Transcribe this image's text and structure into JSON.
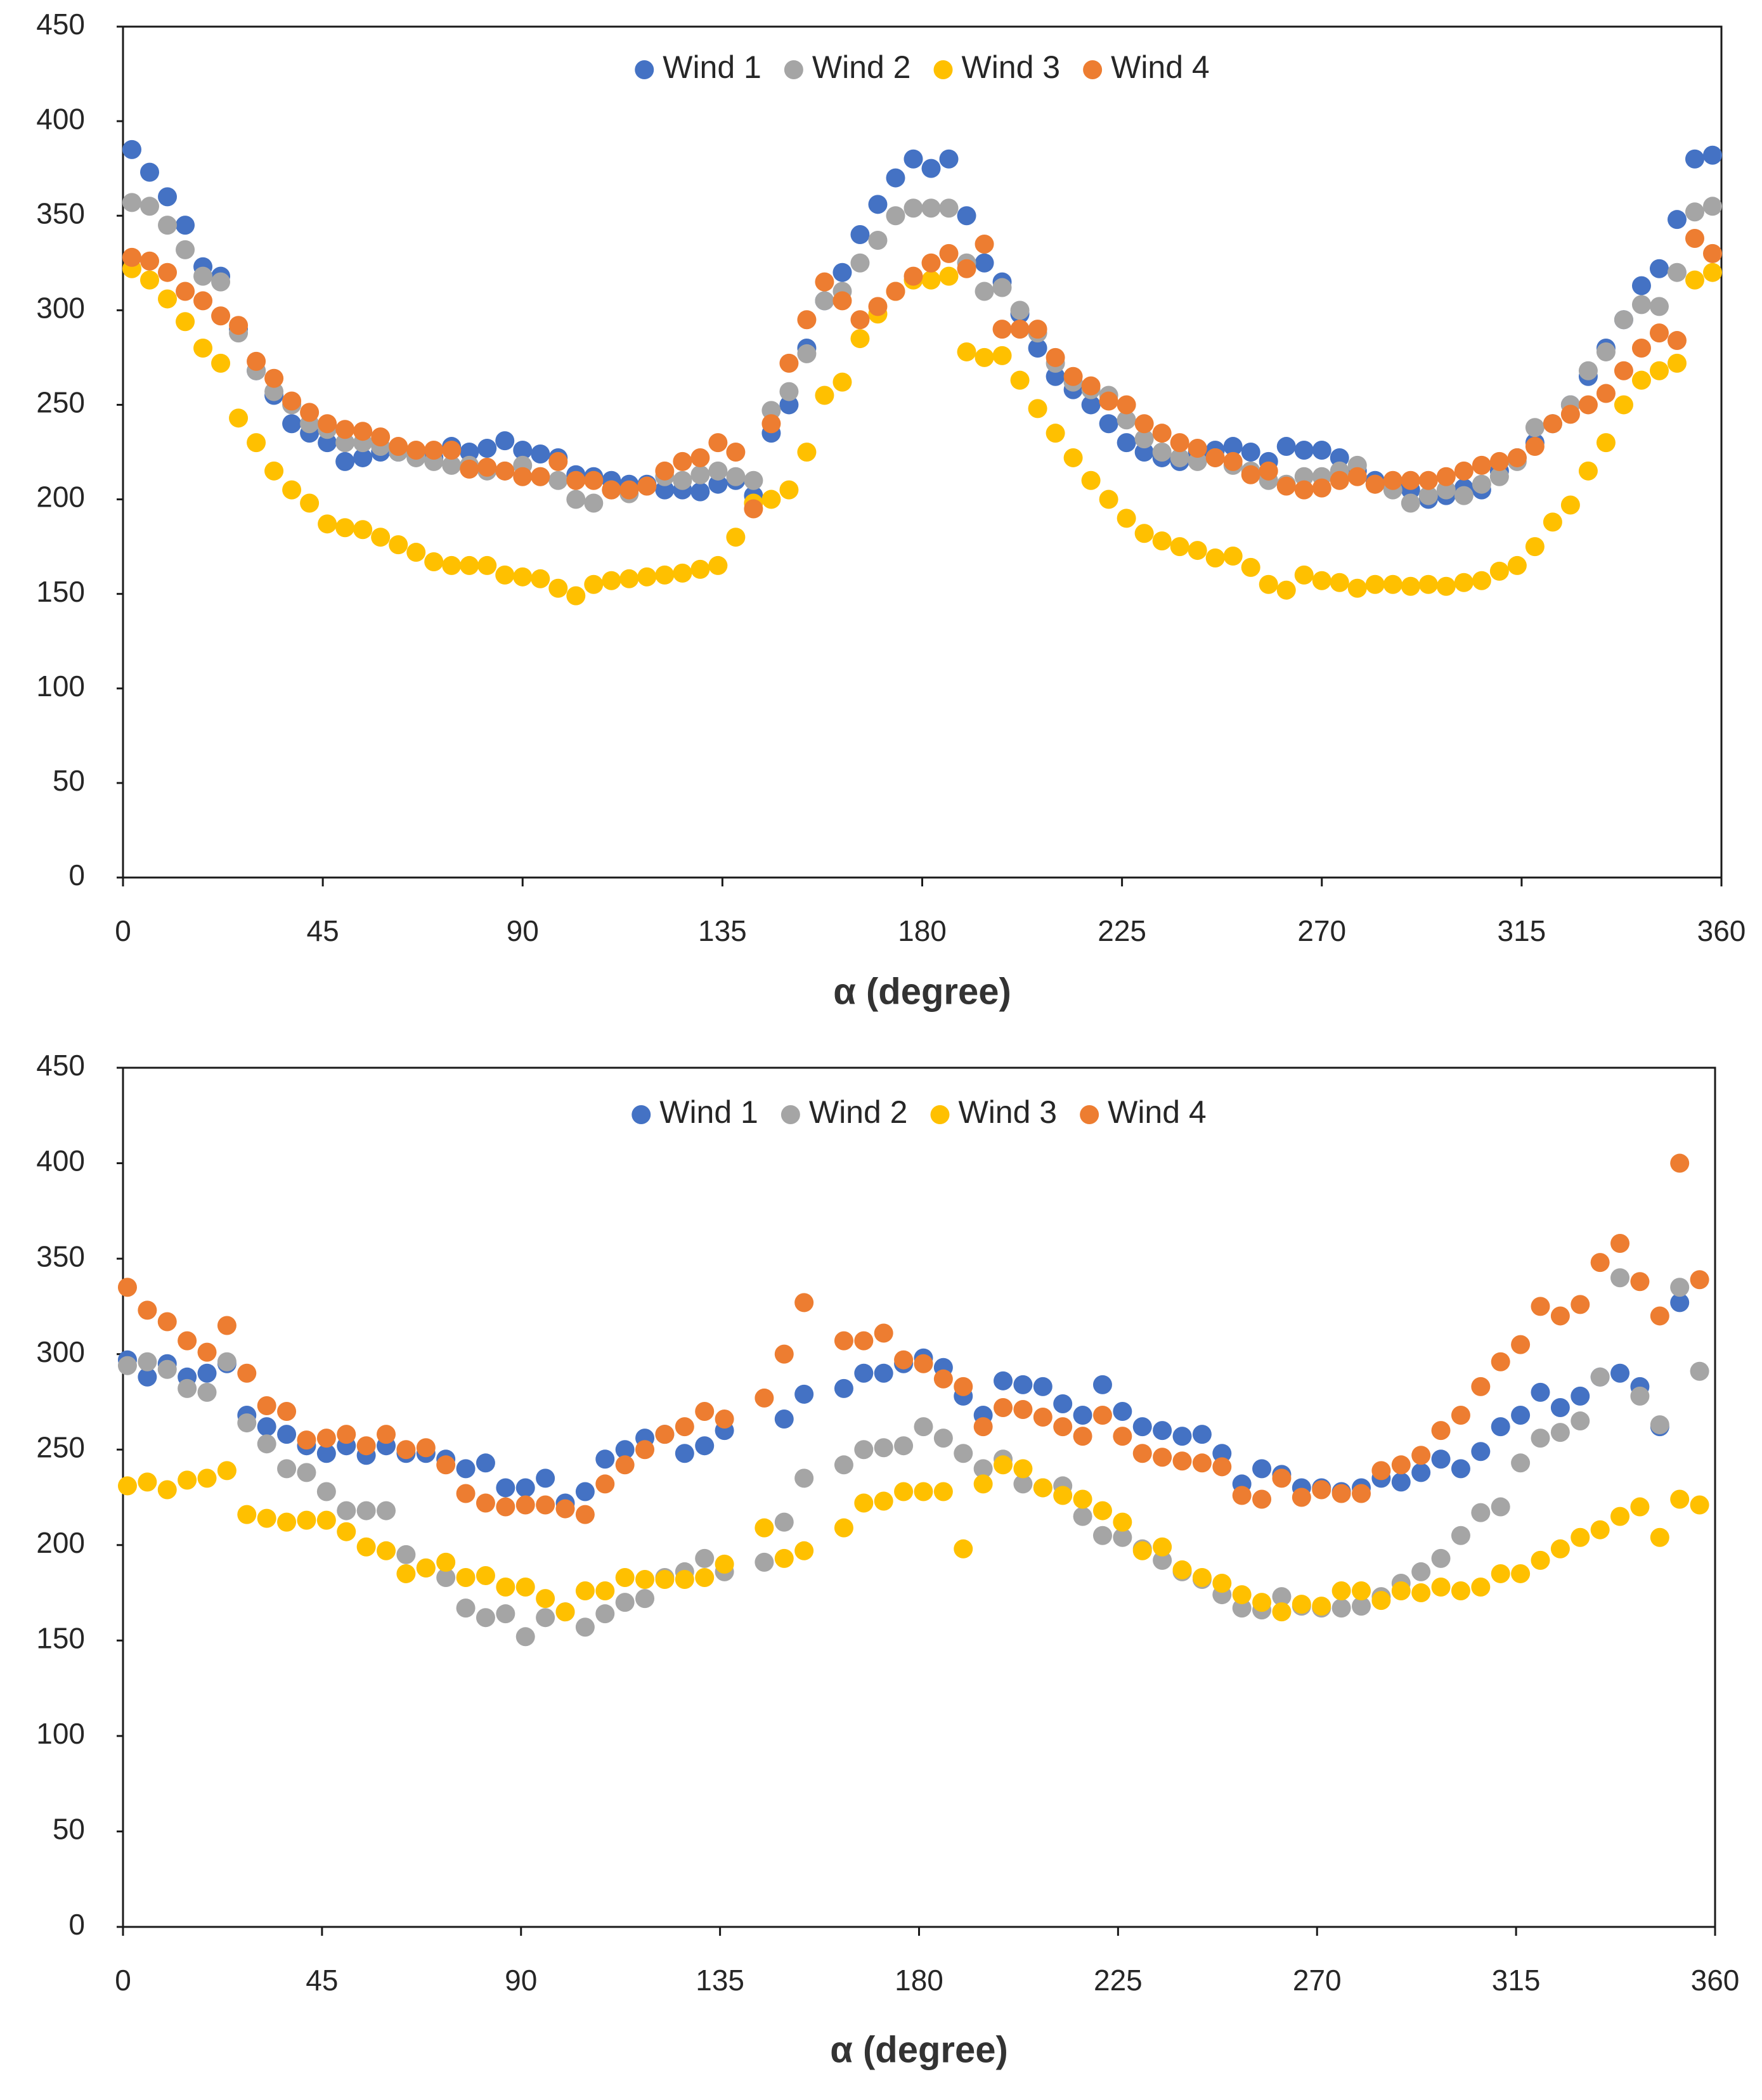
{
  "chart_data": [
    {
      "type": "scatter",
      "xlabel": "α (degree)",
      "xlim": [
        0,
        360
      ],
      "xticks": [
        0,
        45,
        90,
        135,
        180,
        225,
        270,
        315,
        360
      ],
      "ylim": [
        0,
        450
      ],
      "yticks": [
        0,
        50,
        100,
        150,
        200,
        250,
        300,
        350,
        400,
        450
      ],
      "legend": "top",
      "x": [
        2,
        6,
        10,
        14,
        18,
        22,
        26,
        30,
        34,
        38,
        42,
        46,
        50,
        54,
        58,
        62,
        66,
        70,
        74,
        78,
        82,
        86,
        90,
        94,
        98,
        102,
        106,
        110,
        114,
        118,
        122,
        126,
        130,
        134,
        138,
        142,
        146,
        150,
        154,
        158,
        162,
        166,
        170,
        174,
        178,
        182,
        186,
        190,
        194,
        198,
        202,
        206,
        210,
        214,
        218,
        222,
        226,
        230,
        234,
        238,
        242,
        246,
        250,
        254,
        258,
        262,
        266,
        270,
        274,
        278,
        282,
        286,
        290,
        294,
        298,
        302,
        306,
        310,
        314,
        318,
        322,
        326,
        330,
        334,
        338,
        342,
        346,
        350,
        354,
        358
      ],
      "series": [
        {
          "name": "Wind 1",
          "color": "#4472c4",
          "values": [
            385,
            373,
            360,
            345,
            323,
            318,
            290,
            268,
            255,
            240,
            235,
            230,
            220,
            222,
            225,
            225,
            225,
            222,
            228,
            225,
            227,
            231,
            226,
            224,
            222,
            213,
            212,
            210,
            208,
            208,
            205,
            205,
            204,
            208,
            210,
            202,
            235,
            250,
            280,
            305,
            320,
            340,
            356,
            370,
            380,
            375,
            380,
            350,
            325,
            315,
            298,
            280,
            265,
            258,
            250,
            240,
            230,
            225,
            222,
            220,
            225,
            226,
            228,
            225,
            220,
            228,
            226,
            226,
            222,
            215,
            210,
            208,
            205,
            200,
            202,
            206,
            205,
            215,
            222,
            230,
            240,
            250,
            265,
            280,
            295,
            313,
            322,
            348,
            380,
            382
          ]
        },
        {
          "name": "Wind 2",
          "color": "#a5a5a5",
          "values": [
            357,
            355,
            345,
            332,
            318,
            315,
            288,
            268,
            257,
            250,
            240,
            237,
            230,
            230,
            228,
            225,
            222,
            220,
            218,
            218,
            215,
            215,
            218,
            212,
            210,
            200,
            198,
            205,
            203,
            207,
            212,
            210,
            213,
            215,
            212,
            210,
            247,
            257,
            277,
            305,
            310,
            325,
            337,
            350,
            354,
            354,
            354,
            325,
            310,
            312,
            300,
            288,
            272,
            262,
            258,
            255,
            242,
            232,
            225,
            222,
            220,
            222,
            218,
            215,
            210,
            208,
            212,
            212,
            215,
            218,
            208,
            205,
            198,
            202,
            205,
            202,
            208,
            212,
            220,
            238,
            240,
            250,
            268,
            278,
            295,
            303,
            302,
            320,
            352,
            355
          ]
        },
        {
          "name": "Wind 3",
          "color": "#ffc000",
          "values": [
            322,
            316,
            306,
            294,
            280,
            272,
            243,
            230,
            215,
            205,
            198,
            187,
            185,
            184,
            180,
            176,
            172,
            167,
            165,
            165,
            165,
            160,
            159,
            158,
            153,
            149,
            155,
            157,
            158,
            159,
            160,
            161,
            163,
            165,
            180,
            198,
            200,
            205,
            225,
            255,
            262,
            285,
            298,
            310,
            316,
            316,
            318,
            278,
            275,
            276,
            263,
            248,
            235,
            222,
            210,
            200,
            190,
            182,
            178,
            175,
            173,
            169,
            170,
            164,
            155,
            152,
            160,
            157,
            156,
            153,
            155,
            155,
            154,
            155,
            154,
            156,
            157,
            162,
            165,
            175,
            188,
            197,
            215,
            230,
            250,
            263,
            268,
            272,
            316,
            320
          ]
        },
        {
          "name": "Wind 4",
          "color": "#ed7d31",
          "values": [
            328,
            326,
            320,
            310,
            305,
            297,
            292,
            273,
            264,
            252,
            246,
            240,
            237,
            236,
            233,
            228,
            226,
            226,
            226,
            216,
            217,
            215,
            212,
            212,
            220,
            210,
            210,
            205,
            205,
            207,
            215,
            220,
            222,
            230,
            225,
            195,
            240,
            272,
            295,
            315,
            305,
            295,
            302,
            310,
            318,
            325,
            330,
            322,
            335,
            290,
            290,
            290,
            275,
            265,
            260,
            252,
            250,
            240,
            235,
            230,
            227,
            222,
            220,
            213,
            215,
            207,
            205,
            206,
            210,
            212,
            208,
            210,
            210,
            210,
            212,
            215,
            218,
            220,
            222,
            228,
            240,
            245,
            250,
            256,
            268,
            280,
            288,
            284,
            338,
            330
          ]
        }
      ]
    },
    {
      "type": "scatter",
      "xlabel": "α (degree)",
      "xlim": [
        0,
        360
      ],
      "xticks": [
        0,
        45,
        90,
        135,
        180,
        225,
        270,
        315,
        360
      ],
      "ylim": [
        0,
        450
      ],
      "yticks": [
        0,
        50,
        100,
        150,
        200,
        250,
        300,
        350,
        400,
        450
      ],
      "legend": "top",
      "x": [
        1,
        5.5,
        10,
        14.5,
        19,
        23.5,
        28,
        32.5,
        37,
        41.5,
        46,
        50.5,
        55,
        59.5,
        64,
        68.5,
        73,
        77.5,
        82,
        86.5,
        91,
        95.5,
        100,
        104.5,
        109,
        113.5,
        118,
        122.5,
        127,
        131.5,
        136,
        140.5,
        145,
        149.5,
        154,
        158.5,
        163,
        167.5,
        172,
        176.5,
        181,
        185.5,
        190,
        194.5,
        199,
        203.5,
        208,
        212.5,
        217,
        221.5,
        226,
        230.5,
        235,
        239.5,
        244,
        248.5,
        253,
        257.5,
        262,
        266.5,
        271,
        275.5,
        280,
        284.5,
        289,
        293.5,
        298,
        302.5,
        307,
        311.5,
        316,
        320.5,
        325,
        329.5,
        334,
        338.5,
        343,
        347.5,
        352,
        356.5
      ],
      "series": [
        {
          "name": "Wind 1",
          "color": "#4472c4",
          "values": [
            297,
            288,
            295,
            288,
            290,
            295,
            268,
            262,
            258,
            252,
            248,
            252,
            247,
            252,
            248,
            248,
            245,
            240,
            243,
            230,
            230,
            235,
            222,
            228,
            245,
            250,
            256,
            258,
            248,
            252,
            260,
            null,
            null,
            266,
            279,
            null,
            282,
            290,
            290,
            295,
            298,
            293,
            278,
            268,
            286,
            284,
            283,
            274,
            268,
            284,
            270,
            262,
            260,
            257,
            258,
            248,
            232,
            240,
            237,
            230,
            230,
            228,
            230,
            235,
            233,
            238,
            245,
            240,
            249,
            262,
            268,
            280,
            272,
            278,
            288,
            290,
            283,
            262,
            327,
            null
          ]
        },
        {
          "name": "Wind 2",
          "color": "#a5a5a5",
          "values": [
            294,
            296,
            292,
            282,
            280,
            296,
            264,
            253,
            240,
            238,
            228,
            218,
            218,
            218,
            195,
            188,
            183,
            167,
            162,
            164,
            152,
            162,
            165,
            157,
            164,
            170,
            172,
            183,
            186,
            193,
            186,
            null,
            191,
            212,
            235,
            null,
            242,
            250,
            251,
            252,
            262,
            256,
            248,
            240,
            245,
            232,
            230,
            231,
            215,
            205,
            204,
            198,
            192,
            186,
            182,
            174,
            167,
            166,
            173,
            168,
            167,
            167,
            168,
            173,
            180,
            186,
            193,
            205,
            217,
            220,
            243,
            256,
            259,
            265,
            288,
            340,
            278,
            263,
            335,
            291
          ]
        },
        {
          "name": "Wind 3",
          "color": "#ffc000",
          "values": [
            231,
            233,
            229,
            234,
            235,
            239,
            216,
            214,
            212,
            213,
            213,
            207,
            199,
            197,
            185,
            188,
            191,
            183,
            184,
            178,
            178,
            172,
            165,
            176,
            176,
            183,
            182,
            182,
            182,
            183,
            190,
            null,
            209,
            193,
            197,
            null,
            209,
            222,
            223,
            228,
            228,
            228,
            198,
            232,
            242,
            240,
            230,
            226,
            224,
            218,
            212,
            197,
            199,
            187,
            183,
            180,
            174,
            170,
            165,
            169,
            168,
            176,
            176,
            171,
            176,
            175,
            178,
            176,
            178,
            185,
            185,
            192,
            198,
            204,
            208,
            215,
            220,
            204,
            224,
            221
          ]
        },
        {
          "name": "Wind 4",
          "color": "#ed7d31",
          "values": [
            335,
            323,
            317,
            307,
            301,
            315,
            290,
            273,
            270,
            255,
            256,
            258,
            252,
            258,
            250,
            251,
            242,
            227,
            222,
            220,
            221,
            221,
            219,
            216,
            232,
            242,
            250,
            258,
            262,
            270,
            266,
            null,
            277,
            300,
            327,
            null,
            307,
            307,
            311,
            297,
            295,
            287,
            283,
            262,
            272,
            271,
            267,
            262,
            257,
            268,
            257,
            248,
            246,
            244,
            243,
            241,
            226,
            224,
            235,
            225,
            229,
            227,
            227,
            239,
            242,
            247,
            260,
            268,
            283,
            296,
            305,
            325,
            320,
            326,
            348,
            358,
            338,
            320,
            400,
            339
          ]
        }
      ]
    }
  ]
}
